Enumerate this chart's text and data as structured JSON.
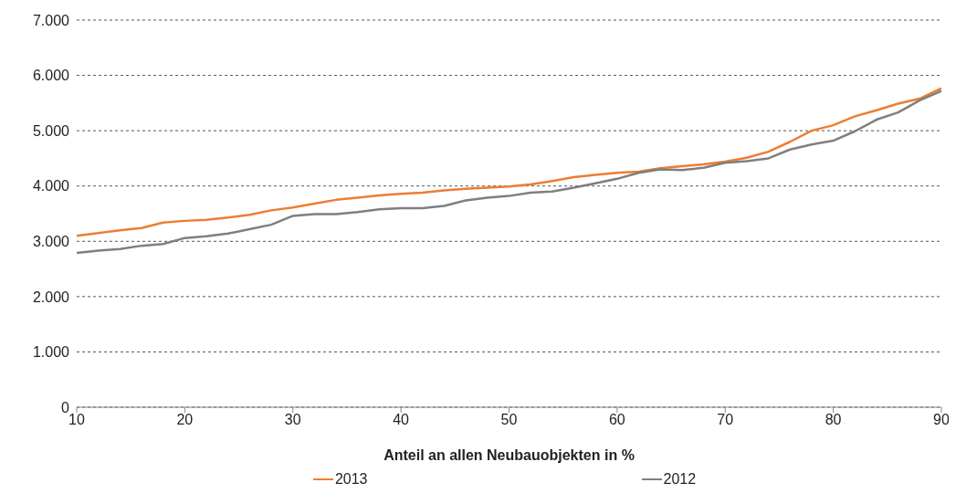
{
  "chart_data": {
    "type": "line",
    "xlabel": "Anteil an allen Neubauobjekten in %",
    "x": [
      10,
      12,
      14,
      16,
      18,
      20,
      22,
      24,
      26,
      28,
      30,
      32,
      34,
      36,
      38,
      40,
      42,
      44,
      46,
      48,
      50,
      52,
      54,
      56,
      58,
      60,
      62,
      64,
      66,
      68,
      70,
      72,
      74,
      76,
      78,
      80,
      82,
      84,
      86,
      88,
      90
    ],
    "series": [
      {
        "name": "2013",
        "color": "#ed7d31",
        "values": [
          3100,
          3150,
          3200,
          3240,
          3340,
          3370,
          3390,
          3430,
          3480,
          3560,
          3610,
          3680,
          3750,
          3790,
          3830,
          3860,
          3880,
          3920,
          3950,
          3970,
          3990,
          4030,
          4090,
          4160,
          4200,
          4240,
          4260,
          4320,
          4360,
          4390,
          4440,
          4510,
          4620,
          4800,
          5000,
          5100,
          5260,
          5370,
          5490,
          5580,
          5770
        ]
      },
      {
        "name": "2012",
        "color": "#7f7f7f",
        "values": [
          2790,
          2830,
          2860,
          2920,
          2950,
          3060,
          3090,
          3140,
          3220,
          3300,
          3460,
          3490,
          3490,
          3530,
          3580,
          3600,
          3600,
          3640,
          3740,
          3790,
          3820,
          3880,
          3900,
          3970,
          4050,
          4130,
          4240,
          4300,
          4290,
          4330,
          4420,
          4450,
          4500,
          4660,
          4750,
          4820,
          4990,
          5200,
          5330,
          5550,
          5720
        ]
      }
    ],
    "xlim": [
      10,
      90
    ],
    "xticks": [
      10,
      20,
      30,
      40,
      50,
      60,
      70,
      80,
      90
    ],
    "ylim": [
      0,
      7000
    ],
    "yticks": [
      {
        "value": 0,
        "label": "0"
      },
      {
        "value": 1000,
        "label": "1.000"
      },
      {
        "value": 2000,
        "label": "2.000"
      },
      {
        "value": 3000,
        "label": "3.000"
      },
      {
        "value": 4000,
        "label": "4.000"
      },
      {
        "value": 5000,
        "label": "5.000"
      },
      {
        "value": 6000,
        "label": "6.000"
      },
      {
        "value": 7000,
        "label": "7.000"
      }
    ],
    "grid": "y",
    "legend": "bottom",
    "marker": "none",
    "line_style": "solid"
  }
}
